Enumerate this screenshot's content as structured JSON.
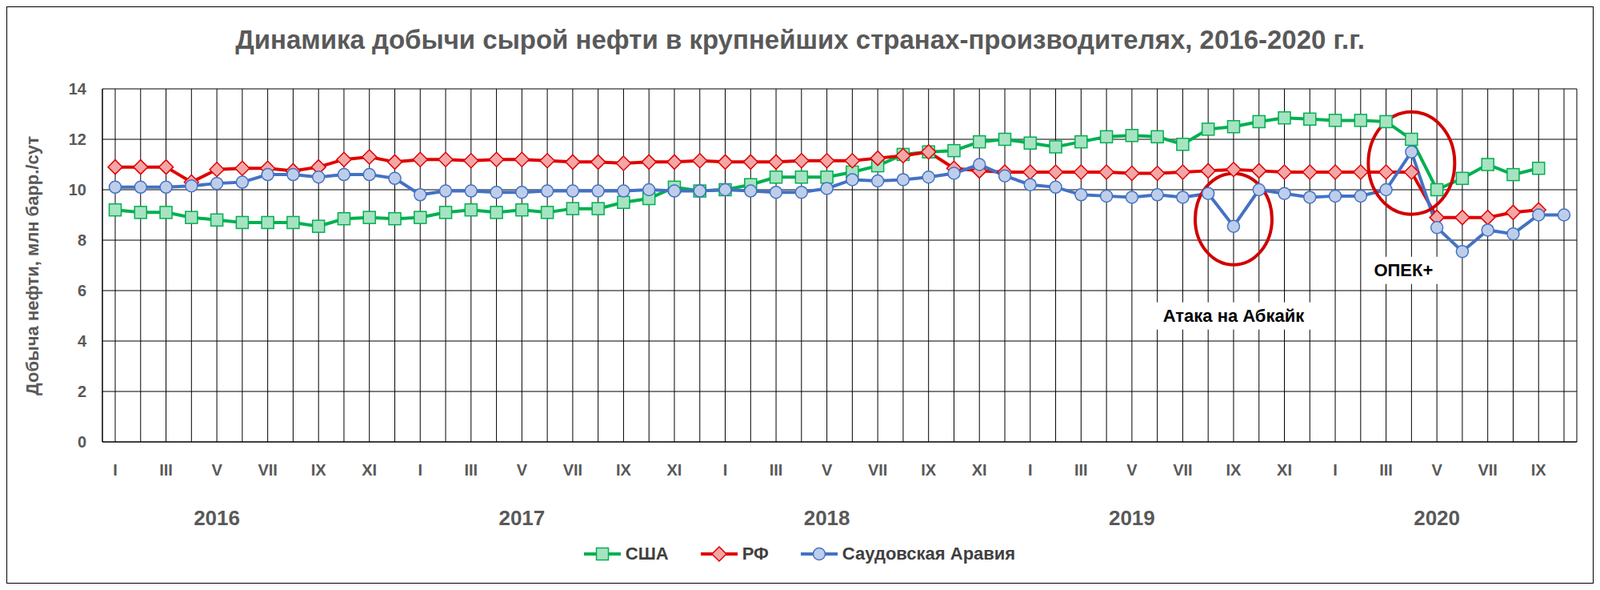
{
  "chart_data": {
    "type": "line",
    "title": "Динамика добычи сырой нефти в крупнейших странах-производителях, 2016-2020 г.г.",
    "y_label": "Добыча нефти, млн барр./сут",
    "categories": [
      "I",
      null,
      "III",
      null,
      "V",
      null,
      "VII",
      null,
      "IX",
      null,
      "XI",
      null,
      "I",
      null,
      "III",
      null,
      "V",
      null,
      "VII",
      null,
      "IX",
      null,
      "XI",
      null,
      "I",
      null,
      "III",
      null,
      "V",
      null,
      "VII",
      null,
      "IX",
      null,
      "XI",
      null,
      "I",
      null,
      "III",
      null,
      "V",
      null,
      "VII",
      null,
      "IX",
      null,
      "XI",
      null,
      "I",
      null,
      "III",
      null,
      "V",
      null,
      "VII",
      null,
      "IX",
      null
    ],
    "years": [
      "2016",
      "2017",
      "2018",
      "2019",
      "2020"
    ],
    "series": [
      {
        "name": "США",
        "color": "#00b050",
        "marker": "square",
        "values": [
          9.2,
          9.1,
          9.1,
          8.9,
          8.8,
          8.7,
          8.7,
          8.7,
          8.55,
          8.85,
          8.9,
          8.85,
          8.9,
          9.1,
          9.2,
          9.1,
          9.2,
          9.1,
          9.25,
          9.25,
          9.5,
          9.65,
          10.1,
          9.95,
          10.0,
          10.2,
          10.5,
          10.5,
          10.5,
          10.7,
          10.95,
          11.4,
          11.5,
          11.55,
          11.9,
          12.0,
          11.85,
          11.7,
          11.9,
          12.1,
          12.15,
          12.1,
          11.8,
          12.4,
          12.5,
          12.7,
          12.85,
          12.8,
          12.75,
          12.75,
          12.7,
          12.0,
          10.0,
          10.45,
          11.0,
          10.6,
          10.85,
          null
        ]
      },
      {
        "name": "РФ",
        "color": "#e00000",
        "marker": "diamond",
        "values": [
          10.9,
          10.9,
          10.9,
          10.3,
          10.8,
          10.85,
          10.85,
          10.75,
          10.9,
          11.2,
          11.3,
          11.1,
          11.2,
          11.2,
          11.15,
          11.2,
          11.2,
          11.15,
          11.1,
          11.1,
          11.05,
          11.1,
          11.1,
          11.15,
          11.1,
          11.1,
          11.1,
          11.15,
          11.15,
          11.15,
          11.25,
          11.35,
          11.5,
          10.85,
          10.75,
          10.7,
          10.7,
          10.7,
          10.7,
          10.7,
          10.65,
          10.65,
          10.7,
          10.75,
          10.8,
          10.75,
          10.7,
          10.7,
          10.7,
          10.7,
          10.7,
          10.7,
          8.9,
          8.9,
          8.9,
          9.1,
          9.2,
          null
        ]
      },
      {
        "name": "Саудовская Аравия",
        "color": "#4472c4",
        "marker": "circle",
        "values": [
          10.1,
          10.1,
          10.1,
          10.15,
          10.25,
          10.3,
          10.6,
          10.6,
          10.5,
          10.6,
          10.6,
          10.45,
          9.8,
          9.95,
          9.95,
          9.9,
          9.9,
          9.95,
          9.95,
          9.95,
          9.95,
          10.0,
          9.95,
          9.95,
          10.0,
          9.95,
          9.9,
          9.9,
          10.05,
          10.4,
          10.35,
          10.4,
          10.5,
          10.65,
          11.0,
          10.55,
          10.2,
          10.1,
          9.8,
          9.75,
          9.7,
          9.8,
          9.7,
          9.85,
          8.55,
          10.0,
          9.85,
          9.7,
          9.75,
          9.75,
          10.0,
          11.5,
          8.5,
          7.55,
          8.4,
          8.25,
          9.0,
          9.0
        ]
      }
    ],
    "ylim": [
      0,
      14
    ],
    "yticks": [
      0,
      2,
      4,
      6,
      8,
      10,
      12,
      14
    ],
    "grid": true,
    "legend": "bottom",
    "annotations": [
      "Атака на Абкайк",
      "ОПЕК+"
    ]
  }
}
